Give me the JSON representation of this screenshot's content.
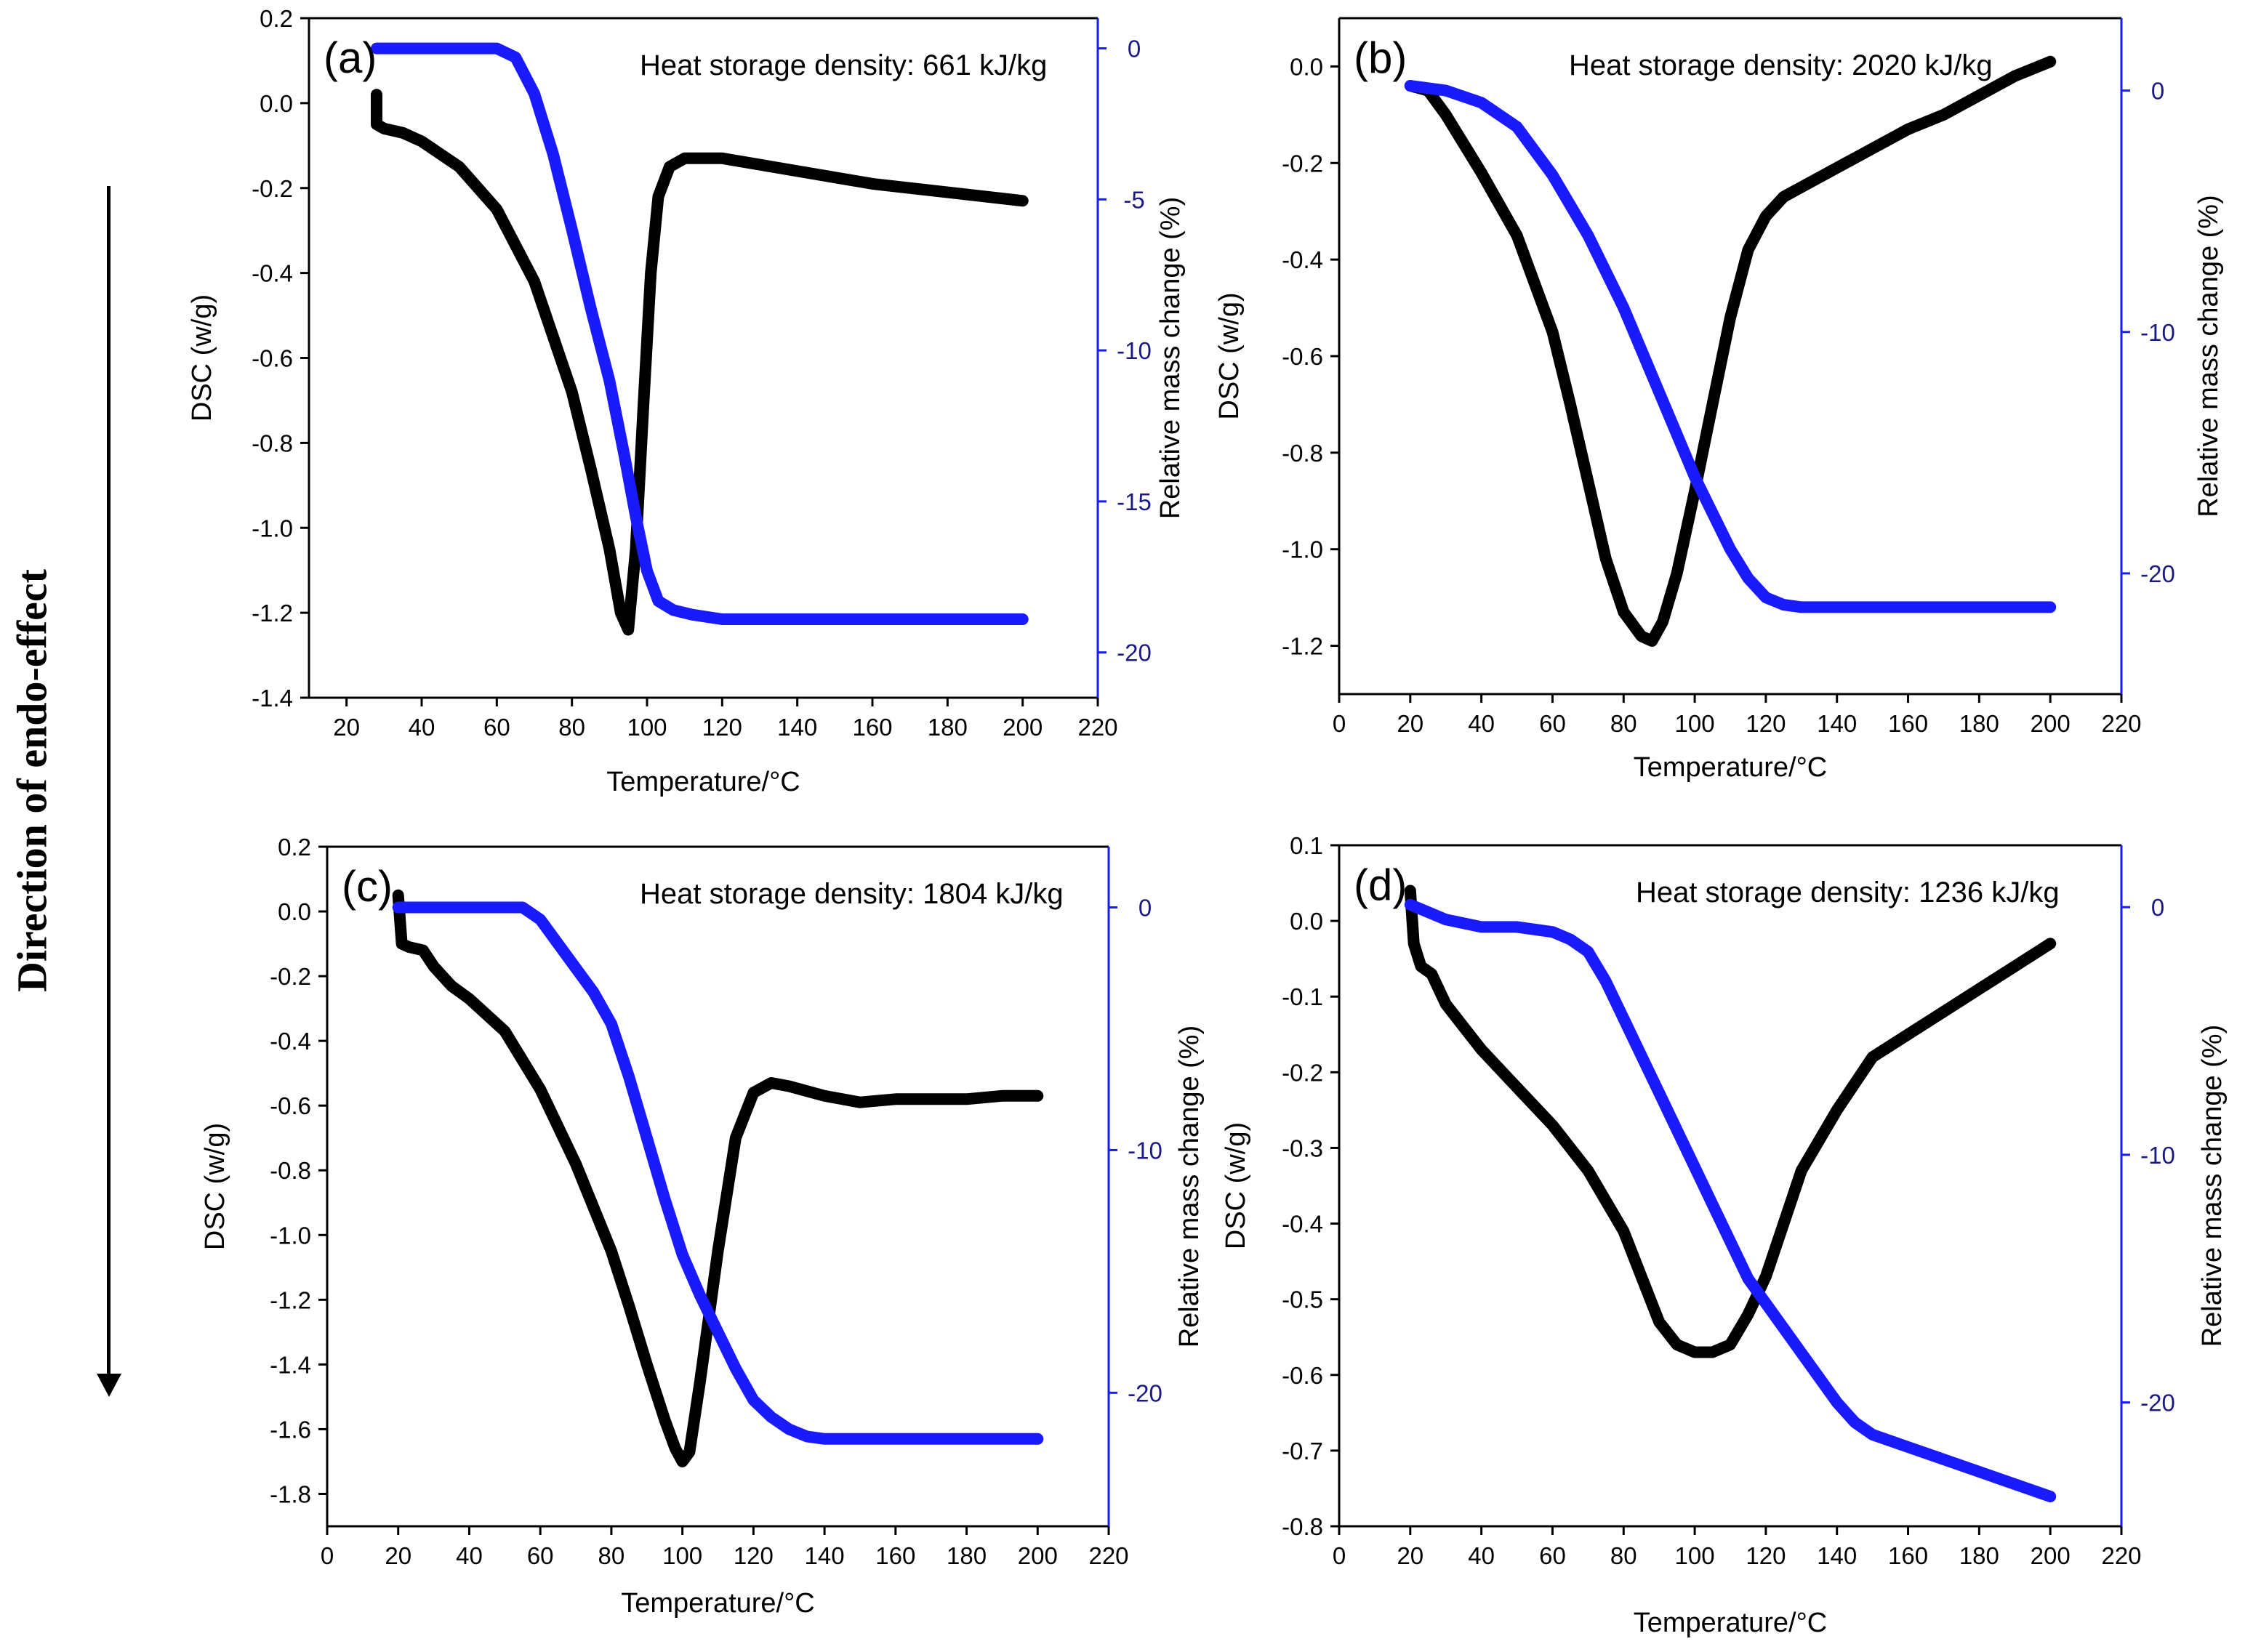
{
  "side_label": "Direction of endo-effect",
  "colors": {
    "dsc": "#000000",
    "mass": "#1a1aff",
    "axis": "#000000",
    "mass_axis": "#1a1aff"
  },
  "chart_data": [
    {
      "id": "a",
      "type": "line",
      "panel_label": "(a)",
      "annotation": "Heat storage density: 661 kJ/kg",
      "xlabel": "Temperature/°C",
      "ylabel": "DSC (w/g)",
      "y2label": "Relative mass change (%)",
      "xlim": [
        10,
        220
      ],
      "ylim": [
        -1.4,
        0.2
      ],
      "y2lim": [
        -21.5,
        1
      ],
      "xticks": [
        20,
        40,
        60,
        80,
        100,
        120,
        140,
        160,
        180,
        200,
        220
      ],
      "yticks": [
        0.2,
        0.0,
        -0.2,
        -0.4,
        -0.6,
        -0.8,
        -1.0,
        -1.2,
        -1.4
      ],
      "ytick_labels": [
        "0.2",
        "0.0",
        "-0.2",
        "-0.4",
        "-0.6",
        "-0.8",
        "-1.0",
        "-1.2",
        "-1.4"
      ],
      "y2ticks": [
        0,
        -5,
        -10,
        -15,
        -20
      ],
      "y2tick_labels": [
        "0",
        "-5",
        "-10",
        "-15",
        "-20"
      ],
      "series": [
        {
          "name": "DSC",
          "axis": "left",
          "x": [
            28,
            28,
            30,
            35,
            40,
            50,
            60,
            70,
            80,
            85,
            90,
            93,
            95,
            97,
            99,
            101,
            103,
            106,
            110,
            120,
            140,
            160,
            180,
            200
          ],
          "y": [
            0.02,
            -0.05,
            -0.06,
            -0.07,
            -0.09,
            -0.15,
            -0.25,
            -0.42,
            -0.68,
            -0.86,
            -1.05,
            -1.2,
            -1.24,
            -1.05,
            -0.72,
            -0.4,
            -0.22,
            -0.15,
            -0.13,
            -0.13,
            -0.16,
            -0.19,
            -0.21,
            -0.23
          ]
        },
        {
          "name": "Relative mass change",
          "axis": "right",
          "x": [
            28,
            60,
            65,
            70,
            75,
            80,
            85,
            90,
            94,
            97,
            100,
            103,
            107,
            112,
            120,
            200
          ],
          "y": [
            0,
            0,
            -0.3,
            -1.5,
            -3.5,
            -6,
            -8.6,
            -11,
            -13.5,
            -15.5,
            -17.3,
            -18.3,
            -18.6,
            -18.75,
            -18.9,
            -18.9
          ]
        }
      ]
    },
    {
      "id": "b",
      "type": "line",
      "panel_label": "(b)",
      "annotation": "Heat storage density: 2020 kJ/kg",
      "xlabel": "Temperature/°C",
      "ylabel": "DSC (w/g)",
      "y2label": "Relative mass change (%)",
      "xlim": [
        0,
        220
      ],
      "ylim": [
        -1.3,
        0.1
      ],
      "y2lim": [
        -25,
        3
      ],
      "xticks": [
        0,
        20,
        40,
        60,
        80,
        100,
        120,
        140,
        160,
        180,
        200,
        220
      ],
      "yticks": [
        0.0,
        -0.2,
        -0.4,
        -0.6,
        -0.8,
        -1.0,
        -1.2
      ],
      "ytick_labels": [
        "0.0",
        "-0.2",
        "-0.4",
        "-0.6",
        "-0.8",
        "-1.0",
        "-1.2"
      ],
      "y2ticks": [
        0,
        -10,
        -20
      ],
      "y2tick_labels": [
        "0",
        "-10",
        "-20"
      ],
      "series": [
        {
          "name": "DSC",
          "axis": "left",
          "x": [
            20,
            25,
            30,
            40,
            50,
            60,
            65,
            70,
            75,
            80,
            85,
            88,
            91,
            95,
            100,
            105,
            110,
            115,
            120,
            125,
            130,
            140,
            150,
            160,
            170,
            180,
            190,
            200
          ],
          "y": [
            -0.04,
            -0.05,
            -0.1,
            -0.22,
            -0.35,
            -0.55,
            -0.7,
            -0.86,
            -1.02,
            -1.13,
            -1.18,
            -1.19,
            -1.15,
            -1.05,
            -0.88,
            -0.7,
            -0.52,
            -0.38,
            -0.31,
            -0.27,
            -0.25,
            -0.21,
            -0.17,
            -0.13,
            -0.1,
            -0.06,
            -0.02,
            0.01
          ]
        },
        {
          "name": "Relative mass change",
          "axis": "right",
          "x": [
            20,
            30,
            40,
            50,
            60,
            70,
            80,
            90,
            100,
            105,
            110,
            115,
            120,
            125,
            130,
            140,
            200
          ],
          "y": [
            0.2,
            0,
            -0.5,
            -1.5,
            -3.5,
            -6,
            -9,
            -12.5,
            -16,
            -17.5,
            -19,
            -20.2,
            -21,
            -21.3,
            -21.4,
            -21.4,
            -21.4
          ]
        }
      ]
    },
    {
      "id": "c",
      "type": "line",
      "panel_label": "(c)",
      "annotation": "Heat storage density: 1804 kJ/kg",
      "xlabel": "Temperature/°C",
      "ylabel": "DSC (w/g)",
      "y2label": "Relative mass change (%)",
      "xlim": [
        0,
        220
      ],
      "ylim": [
        -1.9,
        0.2
      ],
      "y2lim": [
        -25.5,
        2.5
      ],
      "xticks": [
        0,
        20,
        40,
        60,
        80,
        100,
        120,
        140,
        160,
        180,
        200,
        220
      ],
      "yticks": [
        0.2,
        0.0,
        -0.2,
        -0.4,
        -0.6,
        -0.8,
        -1.0,
        -1.2,
        -1.4,
        -1.6,
        -1.8
      ],
      "ytick_labels": [
        "0.2",
        "0.0",
        "-0.2",
        "-0.4",
        "-0.6",
        "-0.8",
        "-1.0",
        "-1.2",
        "-1.4",
        "-1.6",
        "-1.8"
      ],
      "y2ticks": [
        0,
        -10,
        -20
      ],
      "y2tick_labels": [
        "0",
        "-10",
        "-20"
      ],
      "series": [
        {
          "name": "DSC",
          "axis": "left",
          "x": [
            20,
            21,
            23,
            27,
            30,
            35,
            40,
            50,
            60,
            70,
            80,
            85,
            90,
            95,
            98,
            100,
            102,
            105,
            110,
            115,
            120,
            125,
            130,
            140,
            150,
            160,
            170,
            180,
            190,
            200
          ],
          "y": [
            0.05,
            -0.1,
            -0.11,
            -0.12,
            -0.17,
            -0.23,
            -0.27,
            -0.37,
            -0.55,
            -0.78,
            -1.05,
            -1.22,
            -1.4,
            -1.57,
            -1.66,
            -1.7,
            -1.67,
            -1.45,
            -1.05,
            -0.7,
            -0.56,
            -0.53,
            -0.54,
            -0.57,
            -0.59,
            -0.58,
            -0.58,
            -0.58,
            -0.57,
            -0.57
          ]
        },
        {
          "name": "Relative mass change",
          "axis": "right",
          "x": [
            20,
            55,
            60,
            65,
            70,
            75,
            80,
            85,
            90,
            95,
            100,
            105,
            110,
            115,
            120,
            125,
            130,
            135,
            140,
            200
          ],
          "y": [
            0,
            0,
            -0.5,
            -1.5,
            -2.5,
            -3.5,
            -4.8,
            -7,
            -9.5,
            -12,
            -14.3,
            -16,
            -17.5,
            -19,
            -20.3,
            -21,
            -21.5,
            -21.8,
            -21.9,
            -21.9
          ]
        }
      ]
    },
    {
      "id": "d",
      "type": "line",
      "panel_label": "(d)",
      "annotation": "Heat storage density: 1236 kJ/kg",
      "xlabel": "Temperature/°C",
      "ylabel": "DSC (w/g)",
      "y2label": "Relative mass change (%)",
      "xlim": [
        0,
        220
      ],
      "ylim": [
        -0.8,
        0.1
      ],
      "y2lim": [
        -25,
        2.5
      ],
      "xticks": [
        0,
        20,
        40,
        60,
        80,
        100,
        120,
        140,
        160,
        180,
        200,
        220
      ],
      "yticks": [
        0.1,
        0.0,
        -0.1,
        -0.2,
        -0.3,
        -0.4,
        -0.5,
        -0.6,
        -0.7,
        -0.8
      ],
      "ytick_labels": [
        "0.1",
        "0.0",
        "-0.1",
        "-0.2",
        "-0.3",
        "-0.4",
        "-0.5",
        "-0.6",
        "-0.7",
        "-0.8"
      ],
      "y2ticks": [
        0,
        -10,
        -20
      ],
      "y2tick_labels": [
        "0",
        "-10",
        "-20"
      ],
      "series": [
        {
          "name": "DSC",
          "axis": "left",
          "x": [
            20,
            21,
            23,
            26,
            30,
            35,
            40,
            50,
            60,
            70,
            80,
            85,
            90,
            95,
            100,
            105,
            110,
            115,
            120,
            125,
            130,
            135,
            140,
            150,
            160,
            170,
            180,
            190,
            200
          ],
          "y": [
            0.04,
            -0.03,
            -0.06,
            -0.07,
            -0.11,
            -0.14,
            -0.17,
            -0.22,
            -0.27,
            -0.33,
            -0.41,
            -0.47,
            -0.53,
            -0.56,
            -0.57,
            -0.57,
            -0.56,
            -0.52,
            -0.47,
            -0.4,
            -0.33,
            -0.29,
            -0.25,
            -0.18,
            -0.15,
            -0.12,
            -0.09,
            -0.06,
            -0.03
          ]
        },
        {
          "name": "Relative mass change",
          "axis": "right",
          "x": [
            20,
            25,
            30,
            40,
            50,
            60,
            65,
            70,
            75,
            80,
            85,
            90,
            95,
            100,
            105,
            110,
            115,
            120,
            125,
            130,
            135,
            140,
            145,
            150,
            160,
            170,
            180,
            190,
            200
          ],
          "y": [
            0.1,
            -0.2,
            -0.5,
            -0.8,
            -0.8,
            -1,
            -1.3,
            -1.8,
            -3,
            -4.5,
            -6,
            -7.5,
            -9,
            -10.5,
            -12,
            -13.5,
            -15,
            -16,
            -17,
            -18,
            -19,
            -20,
            -20.8,
            -21.3,
            -21.8,
            -22.3,
            -22.8,
            -23.3,
            -23.8
          ]
        }
      ]
    }
  ]
}
